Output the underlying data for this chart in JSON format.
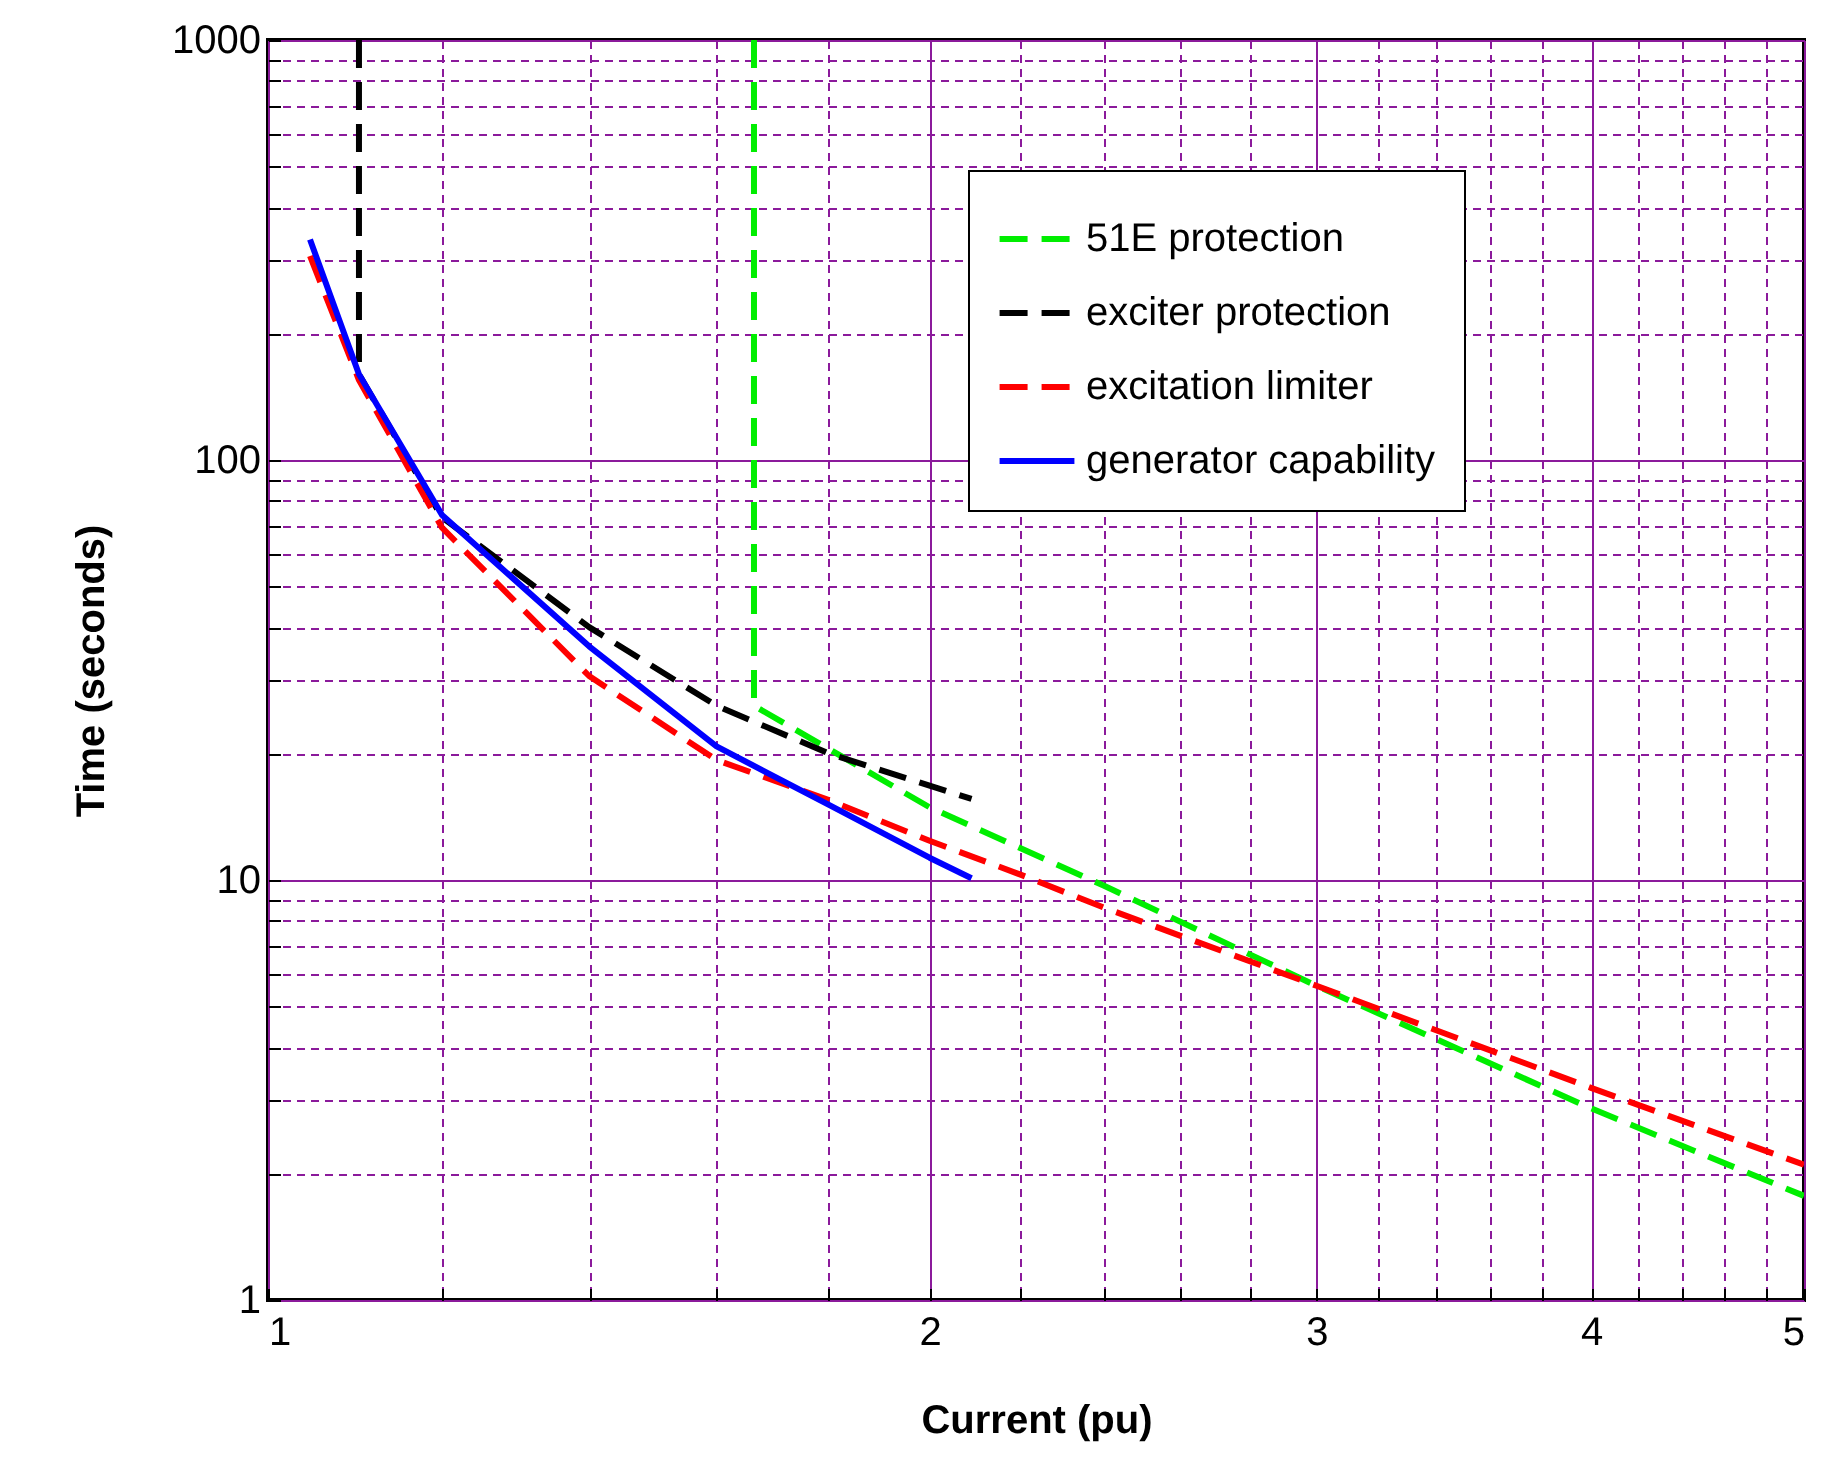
{
  "chart_data": {
    "type": "line",
    "xlabel": "Current (pu)",
    "ylabel": "Time (seconds)",
    "log": "xy",
    "grid": true,
    "legend": "top right",
    "xlim": [
      1,
      5
    ],
    "ylim": [
      1,
      1000
    ],
    "xticks": [
      1,
      {
        "value": 1.2,
        "label": null
      },
      {
        "value": 1.4,
        "label": null
      },
      {
        "value": 1.6,
        "label": null
      },
      {
        "value": 1.8,
        "label": null
      },
      2,
      {
        "value": 2.2,
        "label": null
      },
      {
        "value": 2.4,
        "label": null
      },
      {
        "value": 2.6,
        "label": null
      },
      {
        "value": 2.8,
        "label": null
      },
      3,
      {
        "value": 3.2,
        "label": null
      },
      {
        "value": 3.4,
        "label": null
      },
      {
        "value": 3.6,
        "label": null
      },
      {
        "value": 3.8,
        "label": null
      },
      4,
      {
        "value": 4.2,
        "label": null
      },
      {
        "value": 4.4,
        "label": null
      },
      {
        "value": 4.6,
        "label": null
      },
      {
        "value": 4.8,
        "label": null
      },
      5
    ],
    "yticks": [
      1,
      {
        "value": 2,
        "label": null
      },
      {
        "value": 3,
        "label": null
      },
      {
        "value": 4,
        "label": null
      },
      {
        "value": 5,
        "label": null
      },
      {
        "value": 6,
        "label": null
      },
      {
        "value": 7,
        "label": null
      },
      {
        "value": 8,
        "label": null
      },
      {
        "value": 9,
        "label": null
      },
      10,
      {
        "value": 20,
        "label": null
      },
      {
        "value": 30,
        "label": null
      },
      {
        "value": 40,
        "label": null
      },
      {
        "value": 50,
        "label": null
      },
      {
        "value": 60,
        "label": null
      },
      {
        "value": 70,
        "label": null
      },
      {
        "value": 80,
        "label": null
      },
      {
        "value": 90,
        "label": null
      },
      100,
      {
        "value": 200,
        "label": null
      },
      {
        "value": 300,
        "label": null
      },
      {
        "value": 400,
        "label": null
      },
      {
        "value": 500,
        "label": null
      },
      {
        "value": 600,
        "label": null
      },
      {
        "value": 700,
        "label": null
      },
      {
        "value": 800,
        "label": null
      },
      {
        "value": 900,
        "label": null
      },
      1000
    ],
    "series": [
      {
        "name": "51E protection",
        "color": "#00ee00",
        "line_style": "dashed",
        "x": [
          1.664,
          1.664,
          2,
          2.4,
          3,
          4,
          5
        ],
        "values": [
          1000,
          26,
          14.9,
          9.7,
          5.6,
          2.86,
          1.77
        ]
      },
      {
        "name": "exciter protection",
        "color": "#000000",
        "line_style": "dashed",
        "x": [
          1.1,
          1.1,
          1.2,
          1.4,
          1.6,
          1.8,
          2.09
        ],
        "values": [
          1000,
          160,
          73,
          40,
          26,
          20,
          15.6
        ]
      },
      {
        "name": "excitation limiter",
        "color": "#ff0000",
        "line_style": "dashed",
        "x": [
          1.045,
          1.1,
          1.2,
          1.4,
          1.6,
          1.8,
          2,
          2.2,
          2.4,
          3,
          4,
          5
        ],
        "values": [
          306,
          155,
          69,
          30.6,
          19.3,
          15.5,
          12.4,
          10.3,
          8.6,
          5.6,
          3.2,
          2.1
        ]
      },
      {
        "name": "generator capability",
        "color": "#0000ff",
        "line_style": "solid",
        "x": [
          1.045,
          1.1,
          1.2,
          1.4,
          1.6,
          1.8,
          2,
          2.09
        ],
        "values": [
          335,
          160,
          74,
          36,
          20.8,
          15.1,
          11.3,
          10.1
        ]
      }
    ]
  }
}
